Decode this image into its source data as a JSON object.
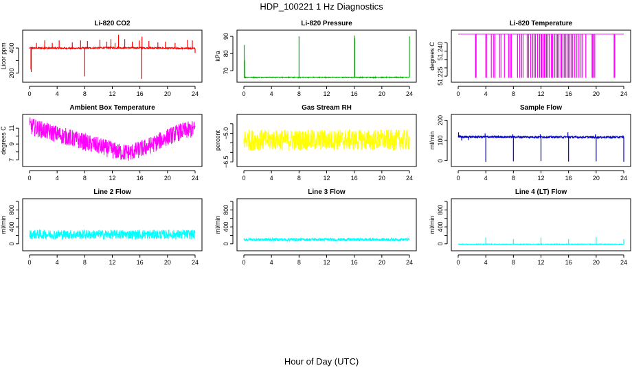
{
  "figure": {
    "title": "HDP_100221  1 Hz Diagnostics",
    "xlabel": "Hour of Day (UTC)"
  },
  "chart_data": [
    {
      "type": "line",
      "title": "Li-820 CO2",
      "ylabel": "Licor ppm",
      "color": "#ff0000",
      "xlim": [
        0,
        24
      ],
      "xticks": [
        0,
        4,
        8,
        12,
        16,
        20,
        24
      ],
      "ylim": [
        150,
        520
      ],
      "yticks": [
        200,
        300,
        400
      ],
      "ytick_labels": [
        "200",
        "",
        "400"
      ],
      "base": [
        [
          0,
          400
        ],
        [
          6,
          398
        ],
        [
          12,
          402
        ],
        [
          18,
          400
        ],
        [
          24,
          396
        ]
      ],
      "noise": 6,
      "spikes": [
        [
          0.2,
          230
        ],
        [
          0.25,
          210
        ],
        [
          1.0,
          440
        ],
        [
          2.2,
          460
        ],
        [
          3.3,
          440
        ],
        [
          4.3,
          460
        ],
        [
          6.2,
          445
        ],
        [
          7.4,
          460
        ],
        [
          8.0,
          175
        ],
        [
          8.4,
          455
        ],
        [
          10.2,
          465
        ],
        [
          11.2,
          450
        ],
        [
          11.8,
          470
        ],
        [
          12.4,
          440
        ],
        [
          12.9,
          505
        ],
        [
          13.8,
          470
        ],
        [
          14.9,
          450
        ],
        [
          15.9,
          460
        ],
        [
          16.2,
          155
        ],
        [
          16.3,
          490
        ],
        [
          17.3,
          455
        ],
        [
          18.6,
          445
        ],
        [
          19.7,
          450
        ],
        [
          21.1,
          440
        ],
        [
          22.9,
          465
        ],
        [
          23.6,
          460
        ],
        [
          24.0,
          360
        ]
      ]
    },
    {
      "type": "line",
      "title": "Li-820 Pressure",
      "ylabel": "kPa",
      "color": "#00bb00",
      "xlim": [
        0,
        24
      ],
      "xticks": [
        0,
        4,
        8,
        12,
        16,
        20,
        24
      ],
      "ylim": [
        65,
        92
      ],
      "yticks": [
        70,
        80,
        90
      ],
      "ytick_labels": [
        "70",
        "80",
        "90"
      ],
      "base": [
        [
          0,
          66.2
        ],
        [
          24,
          66.2
        ]
      ],
      "noise": 0.25,
      "spikes": [
        [
          0.05,
          85
        ],
        [
          0.1,
          76
        ],
        [
          8.0,
          90
        ],
        [
          16.0,
          90.5
        ],
        [
          16.05,
          89
        ],
        [
          24.0,
          90
        ]
      ]
    },
    {
      "type": "line",
      "title": "Li-820 Temperature",
      "ylabel": "degrees C",
      "color": "#ff00ff",
      "xlim": [
        0,
        24
      ],
      "xticks": [
        0,
        4,
        8,
        12,
        16,
        20,
        24
      ],
      "ylim": [
        51.223,
        51.251
      ],
      "yticks": [
        51.225,
        51.23,
        51.235,
        51.24,
        51.245
      ],
      "ytick_labels": [
        "51.225",
        "",
        "",
        "51.240",
        ""
      ],
      "base": [
        [
          0,
          51.2502
        ],
        [
          24,
          51.2502
        ]
      ],
      "noise": 0,
      "drops": [
        2.5,
        2.6,
        4.0,
        4.1,
        4.8,
        5.1,
        5.3,
        6.0,
        6.2,
        6.7,
        7.3,
        7.5,
        7.7,
        8.6,
        8.9,
        9.2,
        9.4,
        10.0,
        10.2,
        10.5,
        10.8,
        11.0,
        11.2,
        11.5,
        11.8,
        12.0,
        12.1,
        12.3,
        12.5,
        12.6,
        12.8,
        13.0,
        13.2,
        13.5,
        13.7,
        14.0,
        14.2,
        14.4,
        14.6,
        14.9,
        15.0,
        15.2,
        15.4,
        15.6,
        15.8,
        16.0,
        16.2,
        16.4,
        16.6,
        16.9,
        17.2,
        17.5,
        17.8,
        18.0,
        18.5,
        19.4,
        19.5,
        19.6,
        19.8,
        22.6,
        22.7
      ],
      "drop_to": 51.224
    },
    {
      "type": "line",
      "title": "Ambient Box Temperature",
      "ylabel": "degrees C",
      "color": "#ff00ff",
      "xlim": [
        0,
        24
      ],
      "xticks": [
        0,
        4,
        8,
        12,
        16,
        20,
        24
      ],
      "ylim": [
        6.5,
        12.4
      ],
      "yticks": [
        7,
        8,
        9,
        10,
        11
      ],
      "ytick_labels": [
        "7",
        "",
        "9",
        "",
        "11"
      ],
      "base": [
        [
          0,
          11.3
        ],
        [
          1,
          11.0
        ],
        [
          3,
          10.5
        ],
        [
          5,
          10.0
        ],
        [
          7,
          9.5
        ],
        [
          9,
          9.0
        ],
        [
          11,
          8.5
        ],
        [
          13,
          8.0
        ],
        [
          14.5,
          7.9
        ],
        [
          16,
          8.3
        ],
        [
          18,
          9.0
        ],
        [
          20,
          9.9
        ],
        [
          22,
          10.6
        ],
        [
          24,
          10.9
        ]
      ],
      "noise": 1.1,
      "spikes": []
    },
    {
      "type": "line",
      "title": "Gas Stream RH",
      "ylabel": "percent",
      "color": "#ffff00",
      "xlim": [
        0,
        24
      ],
      "xticks": [
        0,
        4,
        8,
        12,
        16,
        20,
        24
      ],
      "ylim": [
        -6.6,
        -4.15
      ],
      "yticks": [
        -6.5,
        -6.0,
        -5.5,
        -5.0,
        -4.5
      ],
      "ytick_labels": [
        "−6.5",
        "",
        "",
        "−5.0",
        ""
      ],
      "base": [
        [
          0,
          -5.35
        ],
        [
          24,
          -5.35
        ]
      ],
      "noise": 0.55,
      "spikes": []
    },
    {
      "type": "line",
      "title": "Sample Flow",
      "ylabel": "ml/min",
      "color": "#0000cc",
      "xlim": [
        0,
        24
      ],
      "xticks": [
        0,
        4,
        8,
        12,
        16,
        20,
        24
      ],
      "ylim": [
        -15,
        215
      ],
      "yticks": [
        0,
        100,
        200
      ],
      "ytick_labels": [
        "0",
        "100",
        "200"
      ],
      "base": [
        [
          0,
          118
        ],
        [
          24,
          116
        ]
      ],
      "noise": 5,
      "spikes": [
        [
          0.05,
          140
        ],
        [
          0.5,
          100
        ],
        [
          1.5,
          102
        ],
        [
          3.9,
          135
        ],
        [
          4.0,
          -5
        ],
        [
          7.9,
          130
        ],
        [
          8.0,
          -3
        ],
        [
          11.9,
          130
        ],
        [
          12.0,
          -2
        ],
        [
          15.9,
          140
        ],
        [
          16.0,
          -4
        ],
        [
          19.9,
          130
        ],
        [
          20.0,
          -3
        ],
        [
          23.9,
          125
        ],
        [
          24.0,
          -5
        ]
      ]
    },
    {
      "type": "line",
      "title": "Line 2 Flow",
      "ylabel": "ml/min",
      "color": "#00ffff",
      "xlim": [
        0,
        24
      ],
      "xticks": [
        0,
        4,
        8,
        12,
        16,
        20,
        24
      ],
      "ylim": [
        -100,
        1000
      ],
      "yticks": [
        0,
        200,
        400,
        600,
        800,
        1000
      ],
      "ytick_labels": [
        "0",
        "",
        "400",
        "",
        "800",
        ""
      ],
      "base": [
        [
          0,
          220
        ],
        [
          24,
          220
        ]
      ],
      "noise": 110,
      "spikes": []
    },
    {
      "type": "line",
      "title": "Line 3 Flow",
      "ylabel": "ml/min",
      "color": "#00ffff",
      "xlim": [
        0,
        24
      ],
      "xticks": [
        0,
        4,
        8,
        12,
        16,
        20,
        24
      ],
      "ylim": [
        -100,
        1000
      ],
      "yticks": [
        0,
        200,
        400,
        600,
        800,
        1000
      ],
      "ytick_labels": [
        "0",
        "",
        "400",
        "",
        "800",
        ""
      ],
      "base": [
        [
          0,
          100
        ],
        [
          24,
          100
        ]
      ],
      "noise": 35,
      "spikes": []
    },
    {
      "type": "line",
      "title": "Line 4 (LT) Flow",
      "ylabel": "ml/min",
      "color": "#00ffff",
      "xlim": [
        0,
        24
      ],
      "xticks": [
        0,
        4,
        8,
        12,
        16,
        20,
        24
      ],
      "ylim": [
        -100,
        1000
      ],
      "yticks": [
        0,
        200,
        400,
        600,
        800,
        1000
      ],
      "ytick_labels": [
        "0",
        "",
        "400",
        "",
        "800",
        ""
      ],
      "base": [
        [
          0,
          -10
        ],
        [
          24,
          -10
        ]
      ],
      "noise": 8,
      "spikes": [
        [
          4.0,
          150
        ],
        [
          8.0,
          110
        ],
        [
          12.0,
          150
        ],
        [
          16.0,
          110
        ],
        [
          20.0,
          160
        ],
        [
          24.0,
          110
        ]
      ]
    }
  ]
}
